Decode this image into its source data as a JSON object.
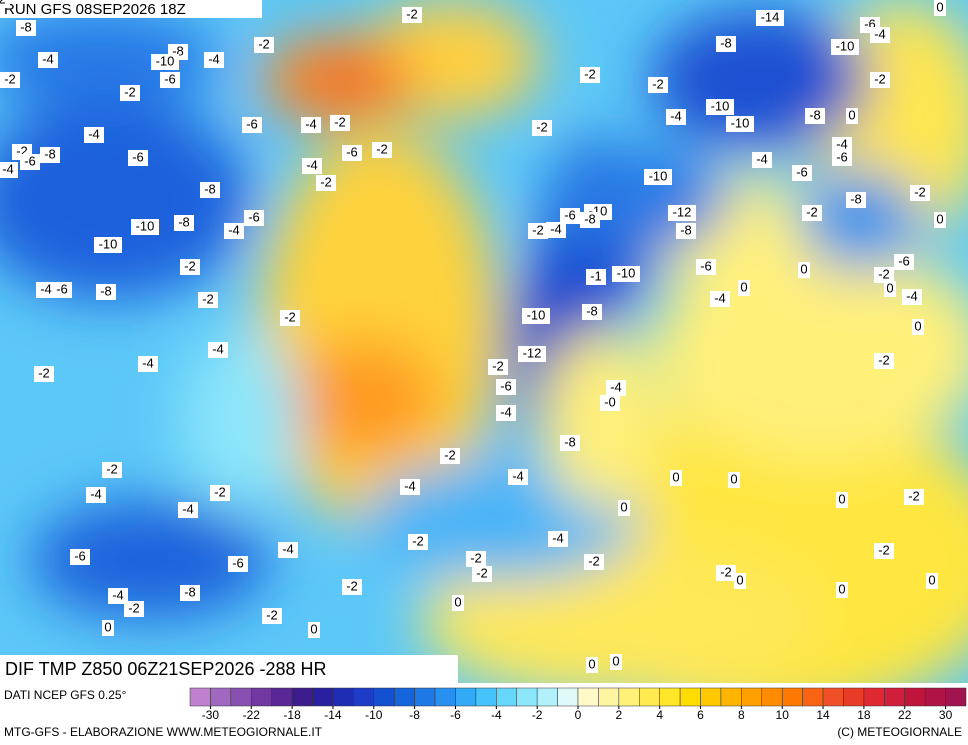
{
  "header": {
    "title": "RUN GFS 08SEP2026 18Z"
  },
  "map": {
    "run_label": "DIF TMP Z850 06Z21SEP2026 -288 HR",
    "contour_labels": [
      "-2",
      "-8",
      "-8",
      "-4",
      "-2",
      "-10",
      "-6",
      "-4",
      "-2",
      "-2",
      "-4",
      "-2",
      "-6",
      "-8",
      "-4",
      "-6",
      "-6",
      "-4",
      "-2",
      "-4",
      "-6",
      "-2",
      "-2",
      "-8",
      "-6",
      "-4",
      "-8",
      "-10",
      "-10",
      "-2",
      "-4",
      "-6",
      "-8",
      "-2",
      "-2",
      "-4",
      "-4",
      "-2",
      "-14",
      "-6",
      "-4",
      "0",
      "-8",
      "-10",
      "-2",
      "-2",
      "-2",
      "-2",
      "-4",
      "-10",
      "-10",
      "-8",
      "0",
      "-4",
      "-6",
      "-4",
      "-6",
      "-10",
      "-8",
      "-2",
      "-2",
      "0",
      "-10",
      "-6",
      "-8",
      "-12",
      "-8",
      "-2",
      "-4",
      "-6",
      "0",
      "-2",
      "-6",
      "0",
      "-4",
      "-1",
      "-10",
      "0",
      "-4",
      "-8",
      "-10",
      "0",
      "-12",
      "-2",
      "-2",
      "-6",
      "-4",
      "-0",
      "-4",
      "-8",
      "-2",
      "-2",
      "-4",
      "0",
      "-4",
      "-2",
      "-4",
      "0",
      "0",
      "-2",
      "-4",
      "0",
      "-2",
      "-4",
      "-4",
      "-2",
      "-6",
      "-6",
      "-2",
      "-2",
      "-2",
      "-2",
      "0",
      "0",
      "-2",
      "-8",
      "-4",
      "-2",
      "0",
      "-2",
      "0",
      "0",
      "0",
      "0",
      "0",
      "-2"
    ]
  },
  "footer": {
    "source": "DATI NCEP GFS 0.25°",
    "credit": "MTG-GFS - ELABORAZIONE WWW.METEOGIORNALE.IT",
    "copyright": "(C) METEOGIORNALE"
  },
  "colorbar": {
    "ticks": [
      -30,
      -22,
      -18,
      -14,
      -10,
      -8,
      -6,
      -4,
      -2,
      0,
      2,
      4,
      6,
      8,
      10,
      14,
      18,
      22,
      30
    ],
    "colors": [
      "#c080d0",
      "#a068c0",
      "#8850b0",
      "#7038a0",
      "#5a2896",
      "#3c1c8c",
      "#2820a0",
      "#1e2db4",
      "#1e3cc8",
      "#1450d2",
      "#1464dc",
      "#1e78e6",
      "#2891f0",
      "#32aaf5",
      "#46c3fa",
      "#64d7fa",
      "#8ce6fa",
      "#b4f0fa",
      "#e0fafa",
      "#fffac8",
      "#fff5a0",
      "#fff078",
      "#ffeb50",
      "#ffe628",
      "#ffdc00",
      "#ffc800",
      "#ffb400",
      "#ffa000",
      "#ff8c00",
      "#ff7800",
      "#f86414",
      "#f05028",
      "#e83c28",
      "#e02832",
      "#d01e3c",
      "#c0143c",
      "#b01446",
      "#a01450"
    ]
  }
}
